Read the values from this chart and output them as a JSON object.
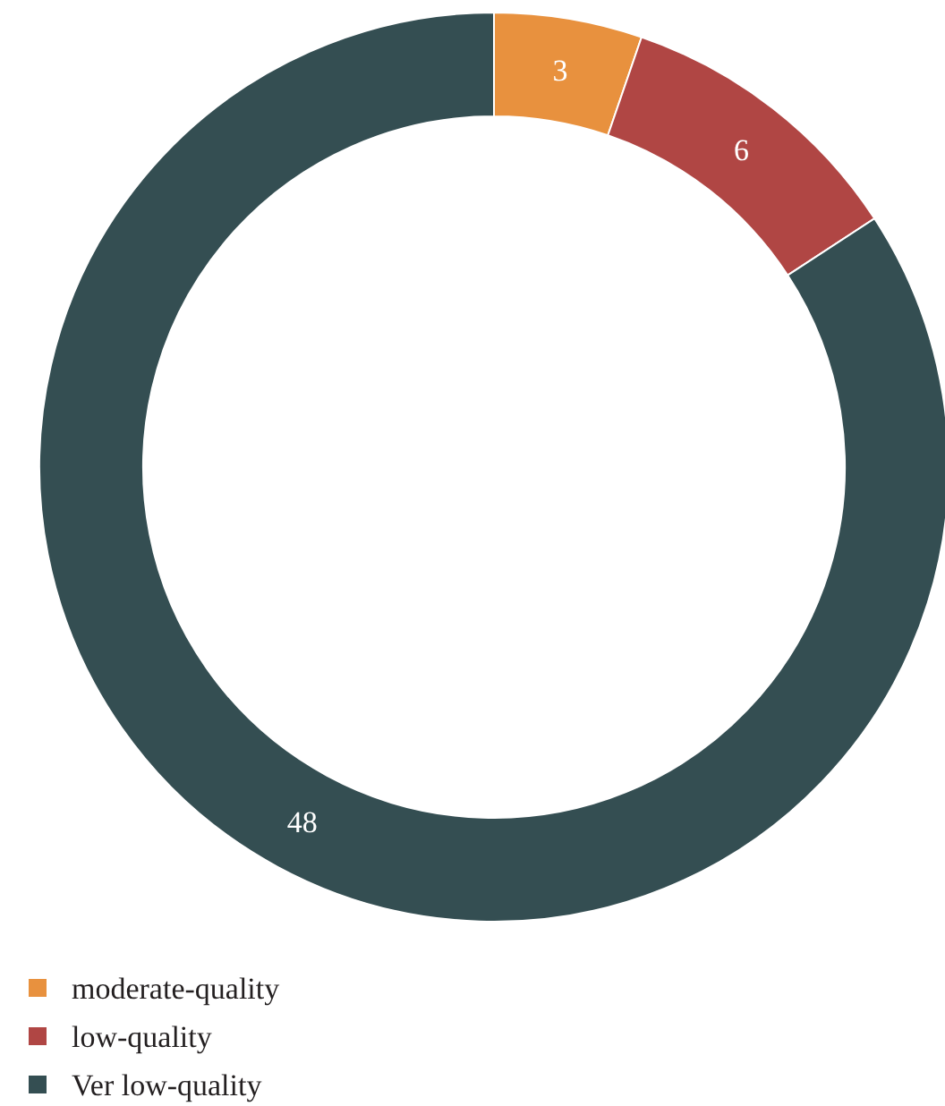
{
  "chart_data": {
    "type": "donut",
    "categories": [
      "moderate-quality",
      "low-quality",
      "Ver low-quality"
    ],
    "values": [
      3,
      6,
      48
    ],
    "colors": [
      "#e8913e",
      "#b04644",
      "#344e52"
    ],
    "data_labels": true,
    "legend": "bottom left"
  }
}
